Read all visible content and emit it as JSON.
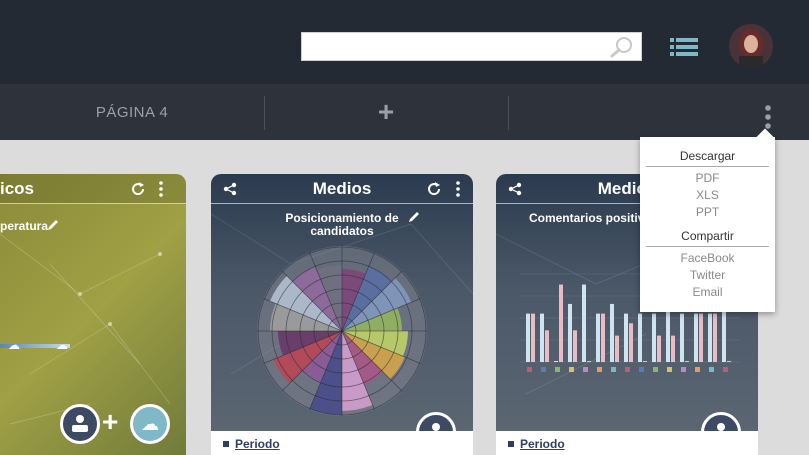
{
  "header": {
    "search": {
      "placeholder": "",
      "value": ""
    },
    "icons": {
      "search": "search-icon",
      "menu": "menu-icon"
    }
  },
  "tabs": {
    "page_label": "PÁGINA 4",
    "add_label": "+"
  },
  "cards": [
    {
      "title": "icos",
      "subtitle": "peratura"
    },
    {
      "title": "Medios",
      "subtitle": "Posicionamiento de candidatos",
      "footer": {
        "period_label": "Periodo"
      }
    },
    {
      "title": "Medios",
      "subtitle": "Comentarios positivos candidatos",
      "footer": {
        "period_label": "Periodo"
      }
    }
  ],
  "dropdown": {
    "download_title": "Descargar",
    "download_items": [
      "PDF",
      "XLS",
      "PPT"
    ],
    "share_title": "Compartir",
    "share_items": [
      "FaceBook",
      "Twitter",
      "Email"
    ]
  },
  "colors": {
    "topbar": "#242a33",
    "tabbar": "#2e333b",
    "accent": "#3d4a63"
  }
}
